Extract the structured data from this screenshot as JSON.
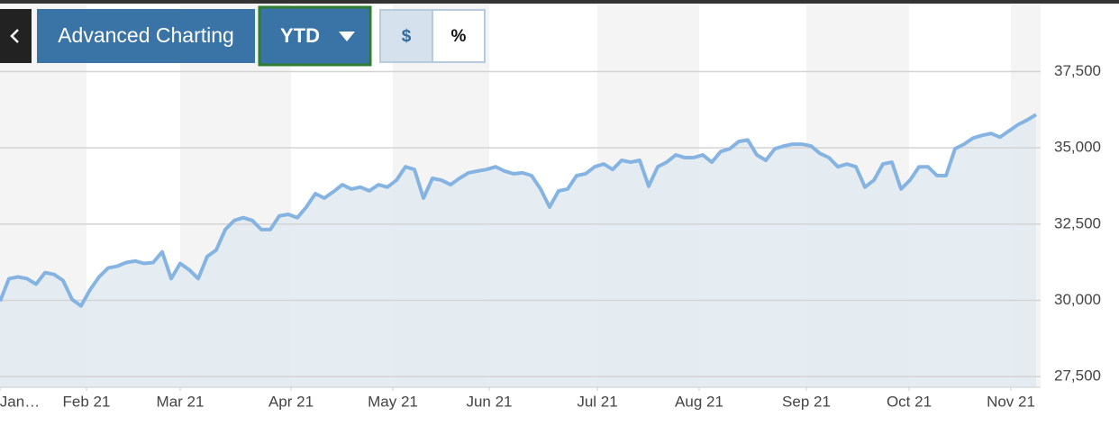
{
  "toolbar": {
    "title": "Advanced Charting",
    "range": "YTD",
    "modes": [
      "$",
      "%"
    ]
  },
  "chart_data": {
    "type": "area",
    "color": "#86b4e2",
    "fill_color": "#e1eaf1",
    "grid": true,
    "axis_side": "right",
    "xlim": [
      0,
      115.5
    ],
    "ylim": [
      27150,
      39700
    ],
    "xticks": [
      {
        "value": 0,
        "label": "Jan…"
      },
      {
        "value": 9.6,
        "label": "Feb 21"
      },
      {
        "value": 20,
        "label": "Mar 21"
      },
      {
        "value": 32.3,
        "label": "Apr 21"
      },
      {
        "value": 43.6,
        "label": "May 21"
      },
      {
        "value": 54.3,
        "label": "Jun 21"
      },
      {
        "value": 66.3,
        "label": "Jul 21"
      },
      {
        "value": 77.6,
        "label": "Aug 21"
      },
      {
        "value": 89.5,
        "label": "Sep 21"
      },
      {
        "value": 100.9,
        "label": "Oct 21"
      },
      {
        "value": 112.2,
        "label": "Nov 21"
      }
    ],
    "yticks": [
      {
        "value": 27500,
        "label": "27,500"
      },
      {
        "value": 30000,
        "label": "30,000"
      },
      {
        "value": 32500,
        "label": "32,500"
      },
      {
        "value": 35000,
        "label": "35,000"
      },
      {
        "value": 37500,
        "label": "37,500"
      }
    ],
    "values": [
      29970,
      30710,
      30770,
      30710,
      30530,
      30910,
      30850,
      30650,
      30030,
      29820,
      30350,
      30770,
      31060,
      31120,
      31240,
      31290,
      31210,
      31240,
      31590,
      30710,
      31210,
      31000,
      30710,
      31440,
      31650,
      32320,
      32620,
      32710,
      32620,
      32320,
      32320,
      32770,
      32820,
      32710,
      33060,
      33500,
      33350,
      33560,
      33790,
      33650,
      33710,
      33590,
      33790,
      33710,
      33940,
      34380,
      34290,
      33350,
      34000,
      33940,
      33790,
      34000,
      34180,
      34240,
      34290,
      34380,
      34240,
      34150,
      34180,
      34090,
      33650,
      33060,
      33590,
      33650,
      34090,
      34150,
      34380,
      34470,
      34290,
      34590,
      34530,
      34590,
      33740,
      34380,
      34530,
      34770,
      34680,
      34680,
      34770,
      34530,
      34880,
      34970,
      35210,
      35260,
      34770,
      34590,
      34970,
      35060,
      35120,
      35120,
      35060,
      34820,
      34680,
      34380,
      34470,
      34380,
      33710,
      33940,
      34470,
      34530,
      33650,
      33940,
      34380,
      34380,
      34090,
      34090,
      34970,
      35120,
      35320,
      35410,
      35470,
      35350,
      35560,
      35760,
      35910,
      36090
    ]
  }
}
